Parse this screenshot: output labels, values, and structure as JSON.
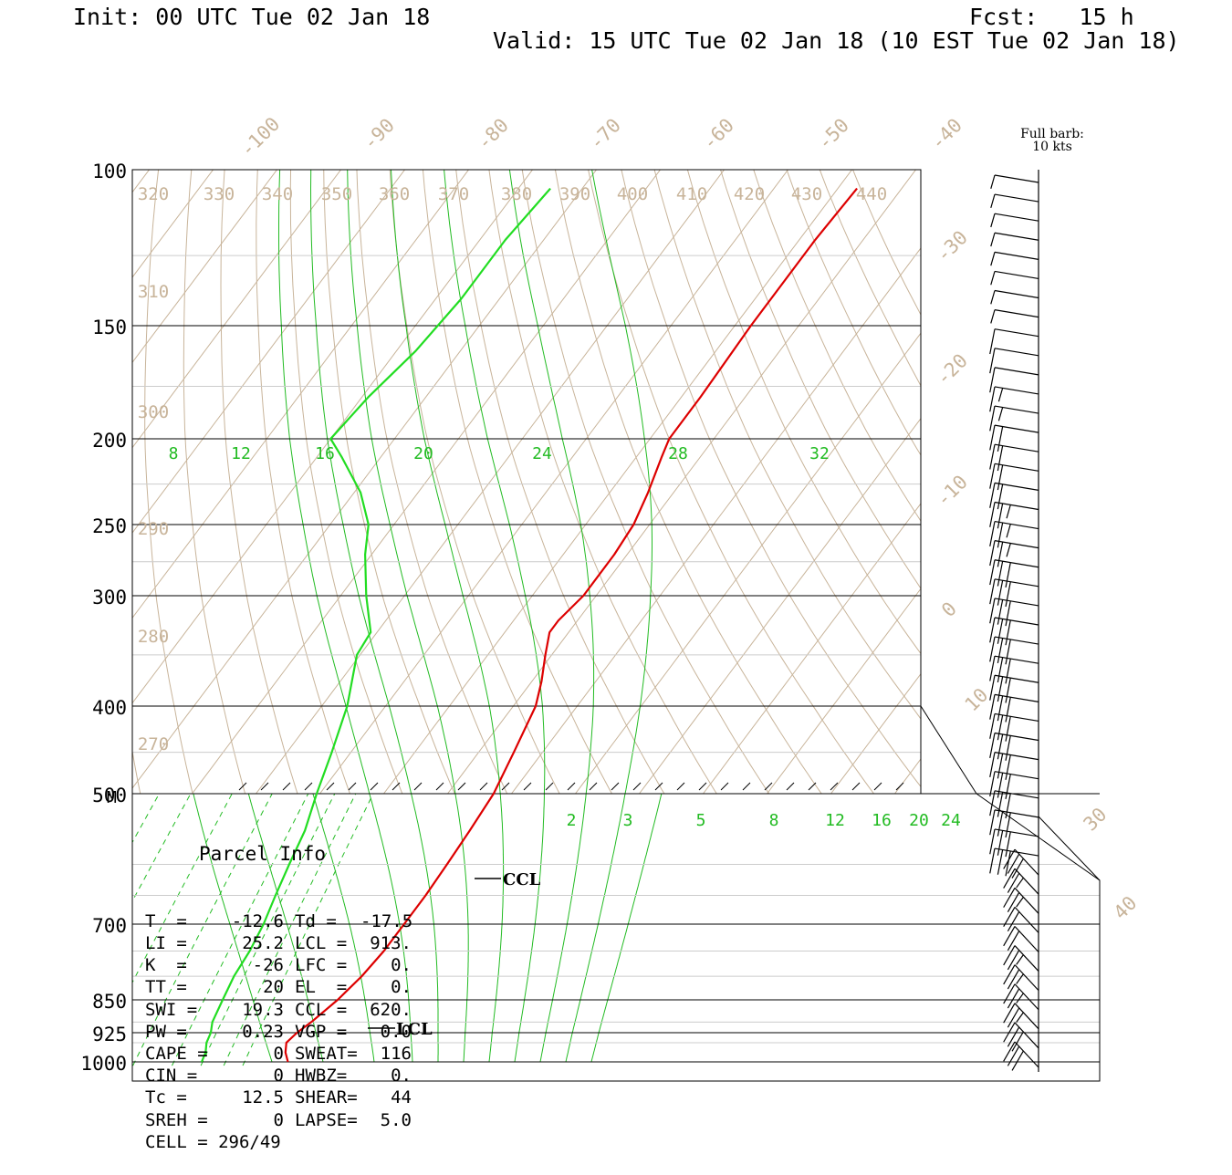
{
  "header": {
    "init": "Init: 00 UTC Tue 02 Jan 18",
    "fcst": "Fcst:   15 h",
    "valid": "Valid: 15 UTC Tue 02 Jan 18 (10 EST Tue 02 Jan 18)"
  },
  "barb_key": {
    "line1": "Full barb:",
    "line2": "10 kts"
  },
  "parcel_info": {
    "title": "Parcel Info",
    "rows": [
      [
        "T  =",
        "-12.6",
        "Td =",
        "-17.5"
      ],
      [
        "LI =",
        "25.2",
        "LCL =",
        "913."
      ],
      [
        "K  =",
        "-26",
        "LFC =",
        "0."
      ],
      [
        "TT =",
        "20",
        "EL  =",
        "0."
      ],
      [
        "SWI =",
        "19.3",
        "CCL =",
        "620."
      ],
      [
        "PW =",
        "0.23",
        "VGP =",
        "0.0"
      ],
      [
        "CAPE =",
        "0",
        "SWEAT=",
        "116"
      ],
      [
        "CIN =",
        "0",
        "HWBZ=",
        "0."
      ],
      [
        "Tc =",
        "12.5",
        "SHEAR=",
        "44"
      ],
      [
        "SREH =",
        "0",
        "LAPSE=",
        "5.0"
      ],
      [
        "CELL = 296/49",
        "",
        "",
        ""
      ]
    ]
  },
  "chart_data": {
    "type": "line",
    "title": "",
    "colors": {
      "temperature": "#dd0000",
      "dewpoint": "#22dd22",
      "background_lines": "#c8b49a",
      "mixing_ratio": "#22bb22",
      "isobars": "#000000"
    },
    "pressure_labels": [
      "100",
      "150",
      "200",
      "250",
      "300",
      "400",
      "500",
      "700",
      "850",
      "925",
      "1000"
    ],
    "pressure_levels": [
      100,
      150,
      200,
      250,
      300,
      400,
      500,
      700,
      850,
      925,
      1000
    ],
    "isotherm_labels": [
      "-100",
      "-90",
      "-80",
      "-70",
      "-60",
      "-50",
      "-40",
      "-30",
      "-20",
      "-10",
      "0",
      "10",
      "30",
      "40"
    ],
    "theta_labels": [
      "320",
      "330",
      "340",
      "350",
      "360",
      "370",
      "380",
      "390",
      "400",
      "410",
      "420",
      "430",
      "440",
      "310",
      "300",
      "290",
      "280",
      "270"
    ],
    "upper_mixing_ratio_labels": [
      "8",
      "12",
      "16",
      "20",
      "24",
      "28",
      "32"
    ],
    "lower_mixing_ratio_labels": [
      "2",
      "3",
      "5",
      "8",
      "12",
      "16",
      "20",
      "24"
    ],
    "boundary_label": "M",
    "annotations": [
      "CCL",
      "LCL"
    ],
    "series": [
      {
        "name": "",
        "points": [
          [
            1000,
            -13.5
          ],
          [
            975,
            -15
          ],
          [
            950,
            -16
          ],
          [
            925,
            -15.5
          ],
          [
            900,
            -14.5
          ],
          [
            850,
            -13
          ],
          [
            800,
            -12
          ],
          [
            750,
            -11.5
          ],
          [
            700,
            -11.5
          ],
          [
            650,
            -11.5
          ],
          [
            600,
            -11.8
          ],
          [
            550,
            -12.2
          ],
          [
            500,
            -12.8
          ],
          [
            450,
            -14.5
          ],
          [
            400,
            -16.5
          ],
          [
            375,
            -18.5
          ],
          [
            350,
            -21
          ],
          [
            330,
            -23
          ],
          [
            320,
            -23
          ],
          [
            300,
            -22
          ],
          [
            270,
            -22
          ],
          [
            250,
            -22.5
          ],
          [
            230,
            -24
          ],
          [
            210,
            -26
          ],
          [
            200,
            -27
          ],
          [
            180,
            -27
          ],
          [
            150,
            -27.5
          ],
          [
            120,
            -27.5
          ],
          [
            105,
            -27
          ]
        ]
      },
      {
        "name": "",
        "points": [
          [
            1000,
            -27
          ],
          [
            975,
            -27.5
          ],
          [
            950,
            -28.5
          ],
          [
            925,
            -29
          ],
          [
            900,
            -30
          ],
          [
            850,
            -31
          ],
          [
            800,
            -32
          ],
          [
            750,
            -32.5
          ],
          [
            700,
            -33.5
          ],
          [
            650,
            -35
          ],
          [
            600,
            -36.5
          ],
          [
            550,
            -38
          ],
          [
            500,
            -40.5
          ],
          [
            450,
            -43
          ],
          [
            400,
            -46
          ],
          [
            350,
            -50.5
          ],
          [
            330,
            -51
          ],
          [
            300,
            -56
          ],
          [
            270,
            -61
          ],
          [
            250,
            -64
          ],
          [
            230,
            -69
          ],
          [
            210,
            -76
          ],
          [
            200,
            -80
          ],
          [
            180,
            -79
          ],
          [
            160,
            -77
          ],
          [
            140,
            -76
          ],
          [
            120,
            -76
          ],
          [
            105,
            -75
          ]
        ]
      }
    ],
    "wind_barbs": [
      "half",
      "half",
      "half",
      "half",
      "half",
      "half",
      "half",
      "half",
      "one",
      "one",
      "one",
      "one+half",
      "one+half",
      "two",
      "two",
      "two",
      "two",
      "two+half",
      "two+half",
      "two+half",
      "three",
      "three",
      "three",
      "three",
      "three",
      "three",
      "three",
      "three",
      "three",
      "three",
      "three",
      "three",
      "three",
      "three",
      "three",
      "three",
      "three",
      "two+half",
      "two+half",
      "two",
      "two",
      "two+half",
      "two+half",
      "two+half",
      "two+half",
      "three",
      "three"
    ]
  }
}
